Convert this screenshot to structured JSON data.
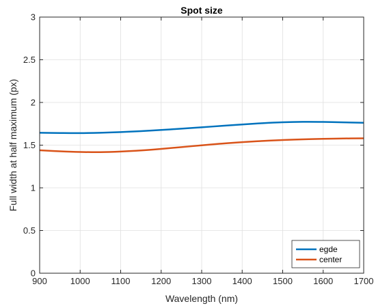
{
  "chart_data": {
    "type": "line",
    "title": "Spot size",
    "xlabel": "Wavelength (nm)",
    "ylabel": "Full width at half maximum (px)",
    "xlim": [
      900,
      1700
    ],
    "ylim": [
      0,
      3
    ],
    "xticks": [
      "900",
      "1000",
      "1100",
      "1200",
      "1300",
      "1400",
      "1500",
      "1600",
      "1700"
    ],
    "yticks": [
      "0",
      "0.5",
      "1",
      "1.5",
      "2",
      "2.5",
      "3"
    ],
    "grid": true,
    "legend_position": "bottom-right",
    "x": [
      900,
      950,
      1000,
      1050,
      1100,
      1150,
      1200,
      1250,
      1300,
      1350,
      1400,
      1450,
      1500,
      1550,
      1600,
      1650,
      1700
    ],
    "series": [
      {
        "name": "egde",
        "color": "#0072BD",
        "values": [
          1.645,
          1.642,
          1.641,
          1.645,
          1.653,
          1.664,
          1.678,
          1.693,
          1.709,
          1.726,
          1.742,
          1.757,
          1.768,
          1.773,
          1.772,
          1.767,
          1.762
        ]
      },
      {
        "name": "center",
        "color": "#D95319",
        "values": [
          1.44,
          1.428,
          1.42,
          1.418,
          1.425,
          1.438,
          1.456,
          1.477,
          1.498,
          1.518,
          1.535,
          1.549,
          1.56,
          1.568,
          1.574,
          1.578,
          1.58
        ]
      }
    ]
  }
}
